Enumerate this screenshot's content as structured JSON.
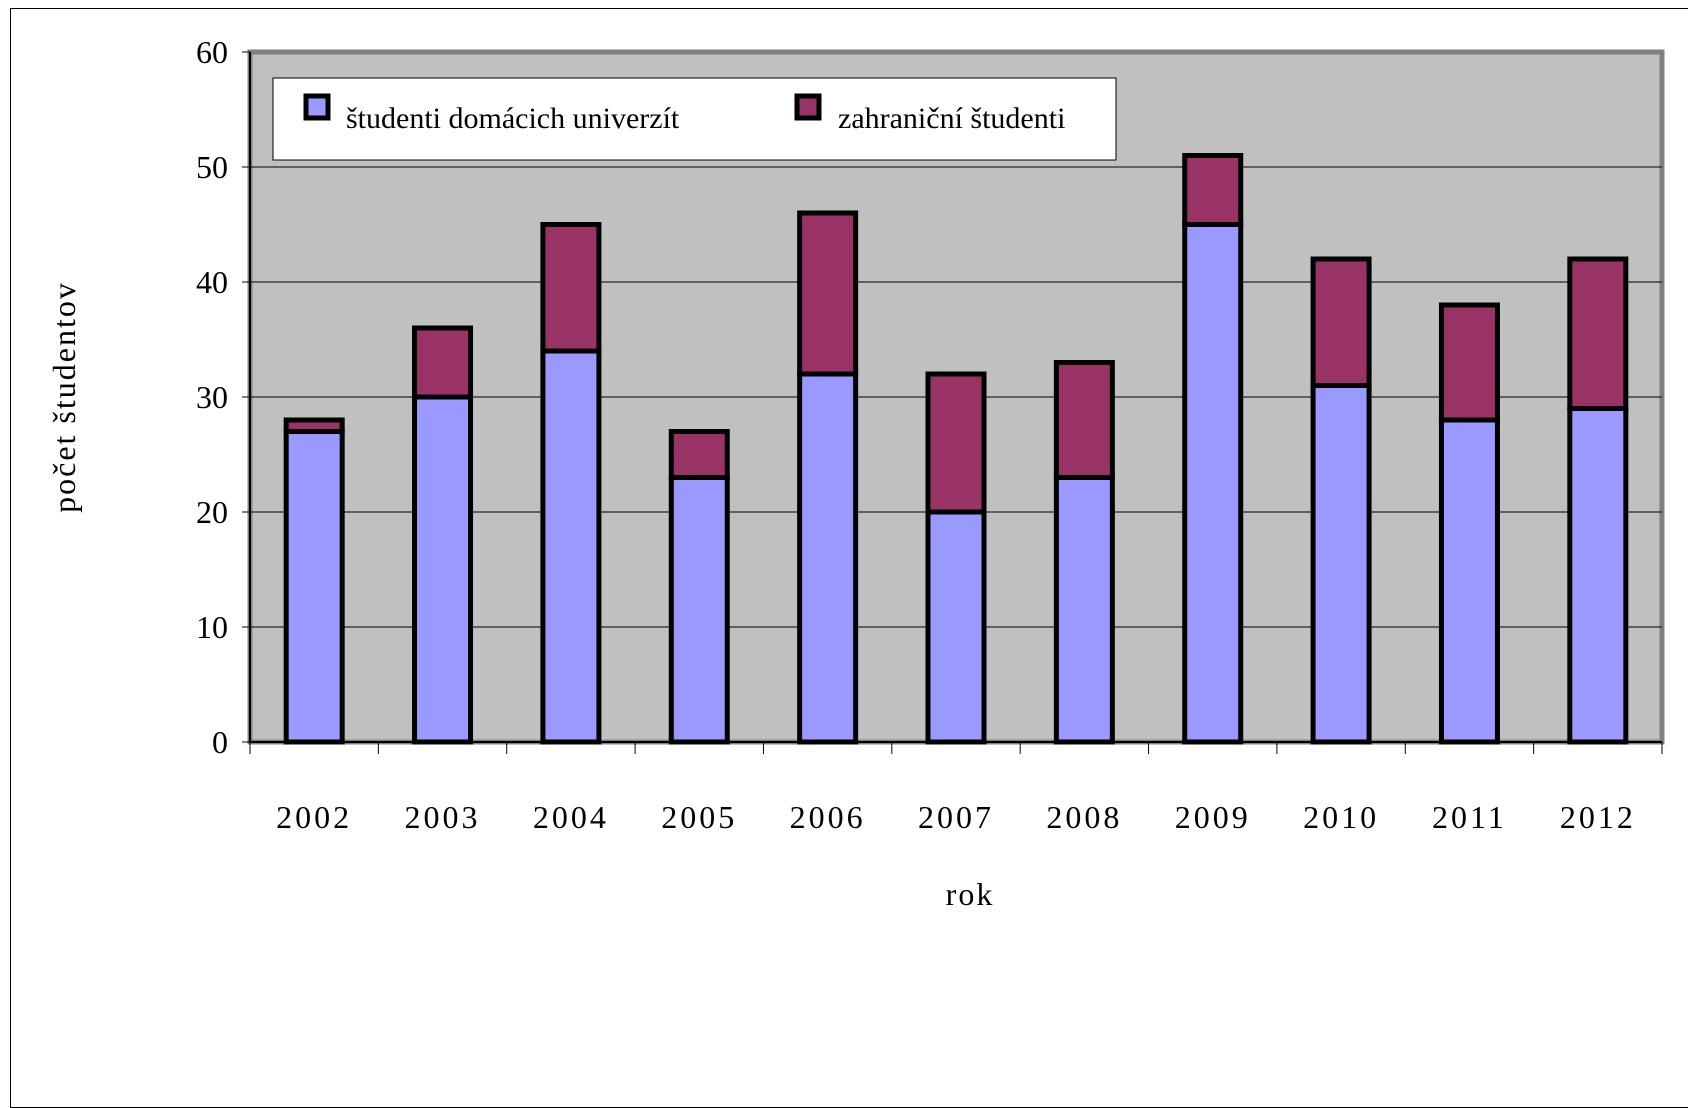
{
  "chart_data": {
    "type": "bar",
    "stacked": true,
    "categories": [
      "2002",
      "2003",
      "2004",
      "2005",
      "2006",
      "2007",
      "2008",
      "2009",
      "2010",
      "2011",
      "2012"
    ],
    "series": [
      {
        "name": "študenti domácich univerzít",
        "color": "#9999ff",
        "values": [
          27,
          30,
          34,
          23,
          32,
          20,
          23,
          45,
          31,
          28,
          29
        ]
      },
      {
        "name": "zahraniční študenti",
        "color": "#993366",
        "values": [
          1,
          6,
          11,
          4,
          14,
          12,
          10,
          6,
          11,
          10,
          13
        ]
      }
    ],
    "title": "",
    "xlabel": "rok",
    "ylabel": "počet študentov",
    "ylim": [
      0,
      60
    ],
    "yticks": [
      0,
      10,
      20,
      30,
      40,
      50,
      60
    ],
    "grid": true,
    "legend_position": "top-left",
    "plot_background": "#c0c0c0"
  }
}
